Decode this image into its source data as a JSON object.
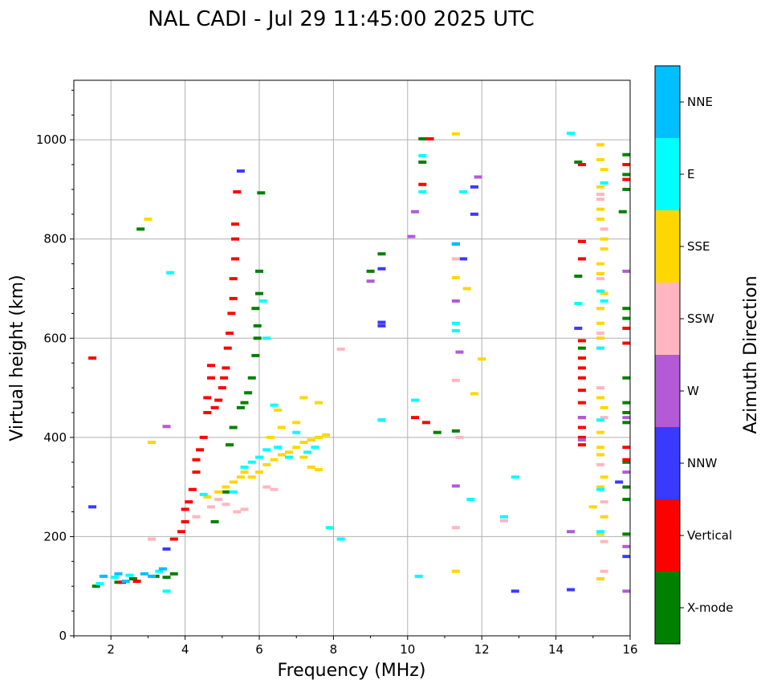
{
  "chart_data": {
    "type": "scatter",
    "title": "NAL CADI - Jul 29 11:45:00 2025 UTC",
    "xlabel": "Frequency (MHz)",
    "ylabel": "Virtual height (km)",
    "xlim": [
      1,
      16
    ],
    "ylim": [
      0,
      1120
    ],
    "xticks": [
      2,
      4,
      6,
      8,
      10,
      12,
      14,
      16
    ],
    "yticks": [
      0,
      200,
      400,
      600,
      800,
      1000
    ],
    "grid": true,
    "colorbar": {
      "label": "Azimuth Direction",
      "categories": [
        {
          "name": "X-mode",
          "color": "#008000"
        },
        {
          "name": "Vertical",
          "color": "#ff0000"
        },
        {
          "name": "NNW",
          "color": "#3a3aff"
        },
        {
          "name": "W",
          "color": "#b35ad6"
        },
        {
          "name": "SSW",
          "color": "#ffb6c1"
        },
        {
          "name": "SSE",
          "color": "#ffd700"
        },
        {
          "name": "E",
          "color": "#00ffff"
        },
        {
          "name": "NNE",
          "color": "#00bfff"
        }
      ]
    },
    "series": [
      {
        "name": "X-mode",
        "points": [
          [
            1.6,
            100
          ],
          [
            2.2,
            108
          ],
          [
            2.6,
            115
          ],
          [
            3.2,
            120
          ],
          [
            3.5,
            118
          ],
          [
            3.7,
            125
          ],
          [
            2.8,
            820
          ],
          [
            4.8,
            230
          ],
          [
            5.1,
            290
          ],
          [
            5.2,
            385
          ],
          [
            5.3,
            420
          ],
          [
            5.5,
            460
          ],
          [
            5.6,
            470
          ],
          [
            5.7,
            490
          ],
          [
            5.8,
            520
          ],
          [
            5.9,
            565
          ],
          [
            5.95,
            600
          ],
          [
            5.95,
            625
          ],
          [
            5.9,
            660
          ],
          [
            6.0,
            690
          ],
          [
            6.0,
            735
          ],
          [
            6.05,
            893
          ],
          [
            9.0,
            735
          ],
          [
            9.3,
            770
          ],
          [
            10.4,
            1002
          ],
          [
            10.4,
            955
          ],
          [
            10.8,
            410
          ],
          [
            11.3,
            413
          ],
          [
            14.6,
            955
          ],
          [
            14.7,
            580
          ],
          [
            15.9,
            970
          ],
          [
            15.9,
            930
          ],
          [
            15.9,
            900
          ],
          [
            15.8,
            855
          ],
          [
            15.9,
            660
          ],
          [
            15.9,
            640
          ],
          [
            15.9,
            520
          ],
          [
            15.9,
            470
          ],
          [
            15.9,
            450
          ],
          [
            15.9,
            430
          ],
          [
            15.9,
            350
          ],
          [
            15.9,
            300
          ],
          [
            15.9,
            275
          ],
          [
            15.9,
            205
          ],
          [
            14.6,
            725
          ]
        ]
      },
      {
        "name": "Vertical",
        "points": [
          [
            1.5,
            560
          ],
          [
            2.3,
            108
          ],
          [
            2.7,
            110
          ],
          [
            3.7,
            195
          ],
          [
            3.9,
            210
          ],
          [
            4.0,
            230
          ],
          [
            4.0,
            255
          ],
          [
            4.1,
            270
          ],
          [
            4.2,
            295
          ],
          [
            4.3,
            330
          ],
          [
            4.3,
            355
          ],
          [
            4.4,
            375
          ],
          [
            4.5,
            400
          ],
          [
            4.6,
            450
          ],
          [
            4.6,
            480
          ],
          [
            4.7,
            520
          ],
          [
            4.7,
            545
          ],
          [
            4.8,
            460
          ],
          [
            4.9,
            475
          ],
          [
            5.0,
            500
          ],
          [
            5.05,
            520
          ],
          [
            5.1,
            540
          ],
          [
            5.15,
            580
          ],
          [
            5.2,
            610
          ],
          [
            5.25,
            650
          ],
          [
            5.3,
            680
          ],
          [
            5.3,
            720
          ],
          [
            5.35,
            760
          ],
          [
            5.35,
            800
          ],
          [
            5.35,
            830
          ],
          [
            5.4,
            895
          ],
          [
            10.2,
            440
          ],
          [
            10.4,
            910
          ],
          [
            10.5,
            430
          ],
          [
            10.6,
            1002
          ],
          [
            14.7,
            795
          ],
          [
            14.7,
            760
          ],
          [
            14.7,
            595
          ],
          [
            14.7,
            560
          ],
          [
            14.7,
            540
          ],
          [
            14.7,
            520
          ],
          [
            14.7,
            495
          ],
          [
            14.7,
            470
          ],
          [
            14.7,
            440
          ],
          [
            14.7,
            420
          ],
          [
            14.7,
            400
          ],
          [
            14.7,
            385
          ],
          [
            14.7,
            950
          ],
          [
            15.9,
            950
          ],
          [
            15.9,
            920
          ],
          [
            15.9,
            620
          ],
          [
            15.9,
            590
          ],
          [
            15.9,
            380
          ],
          [
            15.9,
            355
          ]
        ]
      },
      {
        "name": "NNW",
        "points": [
          [
            1.5,
            260
          ],
          [
            3.5,
            175
          ],
          [
            5.5,
            937
          ],
          [
            9.3,
            632
          ],
          [
            9.3,
            625
          ],
          [
            9.3,
            435
          ],
          [
            9.3,
            740
          ],
          [
            11.3,
            790
          ],
          [
            11.5,
            760
          ],
          [
            11.8,
            850
          ],
          [
            11.8,
            905
          ],
          [
            12.9,
            90
          ],
          [
            14.4,
            93
          ],
          [
            14.6,
            620
          ],
          [
            15.9,
            160
          ],
          [
            15.7,
            310
          ]
        ]
      },
      {
        "name": "W",
        "points": [
          [
            3.5,
            422
          ],
          [
            9.0,
            715
          ],
          [
            10.1,
            805
          ],
          [
            10.2,
            855
          ],
          [
            11.3,
            675
          ],
          [
            11.4,
            572
          ],
          [
            11.3,
            302
          ],
          [
            11.9,
            925
          ],
          [
            14.4,
            210
          ],
          [
            14.7,
            440
          ],
          [
            14.7,
            395
          ],
          [
            15.9,
            440
          ],
          [
            15.9,
            330
          ],
          [
            15.9,
            180
          ],
          [
            15.9,
            90
          ],
          [
            15.9,
            735
          ]
        ]
      },
      {
        "name": "SSW",
        "points": [
          [
            3.1,
            195
          ],
          [
            4.3,
            240
          ],
          [
            4.7,
            260
          ],
          [
            4.9,
            275
          ],
          [
            5.1,
            265
          ],
          [
            5.4,
            250
          ],
          [
            5.6,
            255
          ],
          [
            6.2,
            300
          ],
          [
            6.4,
            295
          ],
          [
            8.2,
            578
          ],
          [
            11.3,
            515
          ],
          [
            11.3,
            218
          ],
          [
            11.4,
            400
          ],
          [
            11.3,
            760
          ],
          [
            12.6,
            232
          ],
          [
            15.2,
            890
          ],
          [
            15.2,
            880
          ],
          [
            15.3,
            820
          ],
          [
            15.2,
            720
          ],
          [
            15.2,
            610
          ],
          [
            15.2,
            500
          ],
          [
            15.3,
            440
          ],
          [
            15.2,
            345
          ],
          [
            15.3,
            270
          ],
          [
            15.3,
            190
          ],
          [
            15.3,
            130
          ]
        ]
      },
      {
        "name": "SSE",
        "points": [
          [
            3.0,
            840
          ],
          [
            3.1,
            390
          ],
          [
            4.6,
            280
          ],
          [
            4.9,
            290
          ],
          [
            5.1,
            300
          ],
          [
            5.3,
            310
          ],
          [
            5.5,
            320
          ],
          [
            5.6,
            330
          ],
          [
            5.8,
            320
          ],
          [
            6.0,
            330
          ],
          [
            6.2,
            345
          ],
          [
            6.4,
            355
          ],
          [
            6.6,
            365
          ],
          [
            6.8,
            370
          ],
          [
            7.0,
            380
          ],
          [
            7.2,
            390
          ],
          [
            7.4,
            395
          ],
          [
            7.6,
            400
          ],
          [
            7.8,
            405
          ],
          [
            7.0,
            430
          ],
          [
            6.6,
            420
          ],
          [
            6.3,
            400
          ],
          [
            7.2,
            360
          ],
          [
            7.4,
            340
          ],
          [
            7.6,
            335
          ],
          [
            6.5,
            455
          ],
          [
            7.2,
            480
          ],
          [
            7.6,
            470
          ],
          [
            11.3,
            1012
          ],
          [
            11.3,
            722
          ],
          [
            11.6,
            700
          ],
          [
            11.8,
            488
          ],
          [
            12.0,
            558
          ],
          [
            11.3,
            130
          ],
          [
            15.0,
            260
          ],
          [
            15.2,
            990
          ],
          [
            15.2,
            960
          ],
          [
            15.3,
            940
          ],
          [
            15.2,
            905
          ],
          [
            15.2,
            860
          ],
          [
            15.2,
            840
          ],
          [
            15.3,
            800
          ],
          [
            15.3,
            780
          ],
          [
            15.2,
            750
          ],
          [
            15.2,
            730
          ],
          [
            15.3,
            690
          ],
          [
            15.2,
            660
          ],
          [
            15.2,
            630
          ],
          [
            15.2,
            600
          ],
          [
            15.2,
            480
          ],
          [
            15.3,
            460
          ],
          [
            15.2,
            410
          ],
          [
            15.2,
            380
          ],
          [
            15.2,
            365
          ],
          [
            15.3,
            320
          ],
          [
            15.2,
            300
          ],
          [
            15.3,
            240
          ],
          [
            15.2,
            205
          ],
          [
            15.2,
            115
          ]
        ]
      },
      {
        "name": "E",
        "points": [
          [
            1.7,
            105
          ],
          [
            2.1,
            118
          ],
          [
            2.5,
            122
          ],
          [
            3.3,
            130
          ],
          [
            3.5,
            90
          ],
          [
            3.6,
            732
          ],
          [
            4.5,
            285
          ],
          [
            5.3,
            290
          ],
          [
            5.6,
            340
          ],
          [
            5.8,
            350
          ],
          [
            6.0,
            360
          ],
          [
            6.2,
            375
          ],
          [
            6.5,
            380
          ],
          [
            6.8,
            360
          ],
          [
            7.3,
            370
          ],
          [
            7.5,
            380
          ],
          [
            6.1,
            675
          ],
          [
            6.2,
            600
          ],
          [
            6.4,
            465
          ],
          [
            7.0,
            410
          ],
          [
            7.9,
            218
          ],
          [
            8.2,
            195
          ],
          [
            9.3,
            435
          ],
          [
            10.2,
            475
          ],
          [
            10.3,
            120
          ],
          [
            10.4,
            895
          ],
          [
            10.4,
            968
          ],
          [
            11.3,
            630
          ],
          [
            11.3,
            615
          ],
          [
            11.5,
            895
          ],
          [
            11.7,
            275
          ],
          [
            12.6,
            240
          ],
          [
            12.9,
            320
          ],
          [
            14.4,
            1013
          ],
          [
            14.6,
            670
          ],
          [
            15.3,
            913
          ],
          [
            15.2,
            695
          ],
          [
            15.3,
            675
          ],
          [
            15.2,
            580
          ],
          [
            15.2,
            435
          ],
          [
            15.2,
            295
          ],
          [
            15.2,
            210
          ]
        ]
      },
      {
        "name": "NNE",
        "points": [
          [
            1.8,
            120
          ],
          [
            2.2,
            125
          ],
          [
            2.4,
            110
          ],
          [
            2.9,
            125
          ],
          [
            3.1,
            120
          ],
          [
            3.4,
            135
          ],
          [
            11.3,
            790
          ]
        ]
      }
    ]
  }
}
